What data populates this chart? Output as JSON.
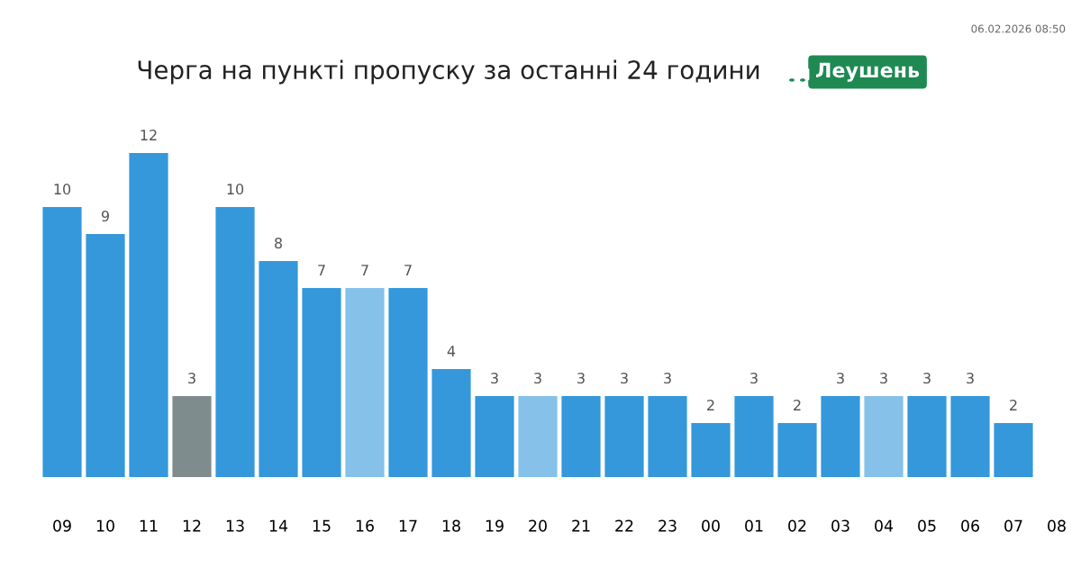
{
  "chart_data": {
    "type": "bar",
    "title": "Черга на пункті пропуску за останні 24 години",
    "subtitle": "Леушень",
    "annotations": [
      "06.02.2026 08:50"
    ],
    "categories": [
      "09",
      "10",
      "11",
      "12",
      "13",
      "14",
      "15",
      "16",
      "17",
      "18",
      "19",
      "20",
      "21",
      "22",
      "23",
      "00",
      "01",
      "02",
      "03",
      "04",
      "05",
      "06",
      "07",
      "08"
    ],
    "values": [
      10,
      9,
      12,
      3,
      10,
      8,
      7,
      7,
      7,
      4,
      3,
      3,
      3,
      3,
      3,
      2,
      3,
      2,
      3,
      3,
      3,
      3,
      2,
      null
    ],
    "colors": [
      "#3498db",
      "#3498db",
      "#3498db",
      "#7f8c8d",
      "#3498db",
      "#3498db",
      "#3498db",
      "#85c1e9",
      "#3498db",
      "#3498db",
      "#3498db",
      "#85c1e9",
      "#3498db",
      "#3498db",
      "#3498db",
      "#3498db",
      "#3498db",
      "#3498db",
      "#3498db",
      "#85c1e9",
      "#3498db",
      "#3498db",
      "#3498db",
      "#3498db"
    ],
    "data_labels": true,
    "grid": false,
    "legend": false
  }
}
